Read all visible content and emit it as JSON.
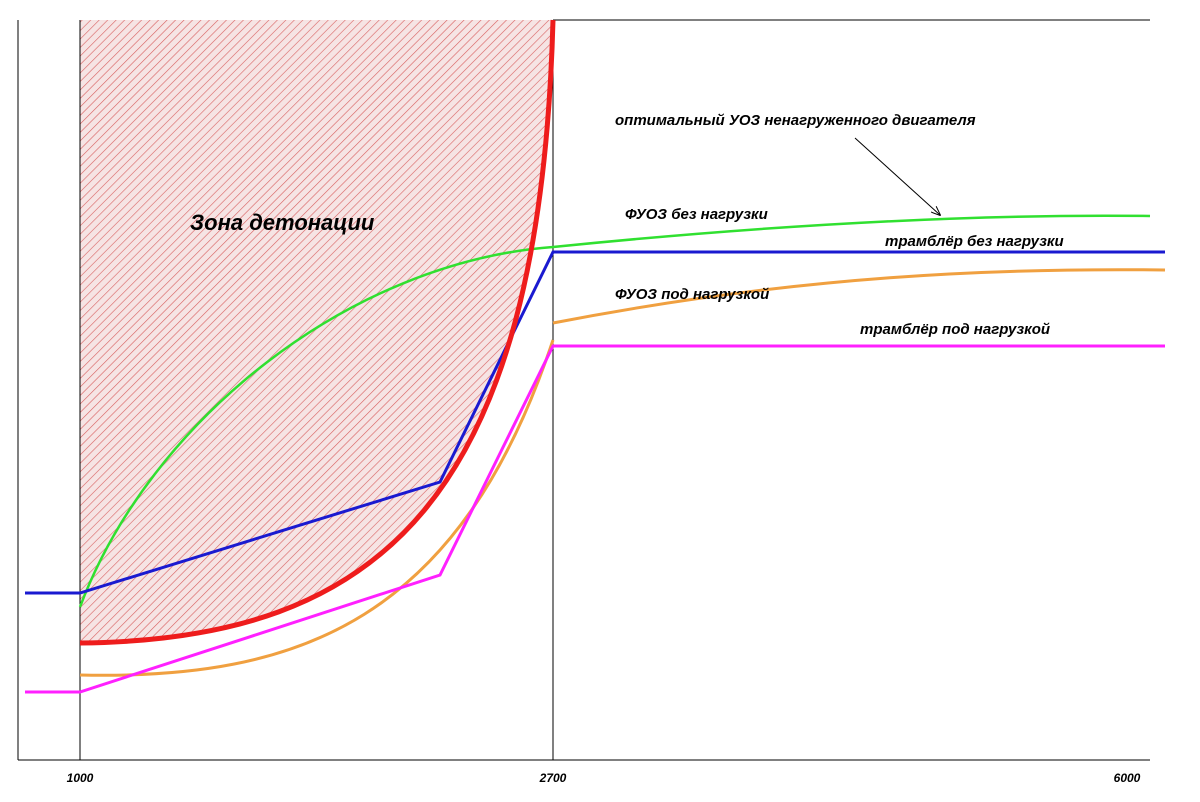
{
  "zone_label": "Зона детонации",
  "curve_labels": {
    "optimal": "оптимальный УОЗ ненагруженного двигателя",
    "fuoz_no_load": "ФУОЗ без нагрузки",
    "distributor_no_load": "трамблёр без нагрузки",
    "fuoz_load": "ФУОЗ под нагрузкой",
    "distributor_load": "трамблёр под нагрузкой"
  },
  "x_axis": {
    "ticks": [
      1000,
      2700,
      6000
    ]
  }
}
